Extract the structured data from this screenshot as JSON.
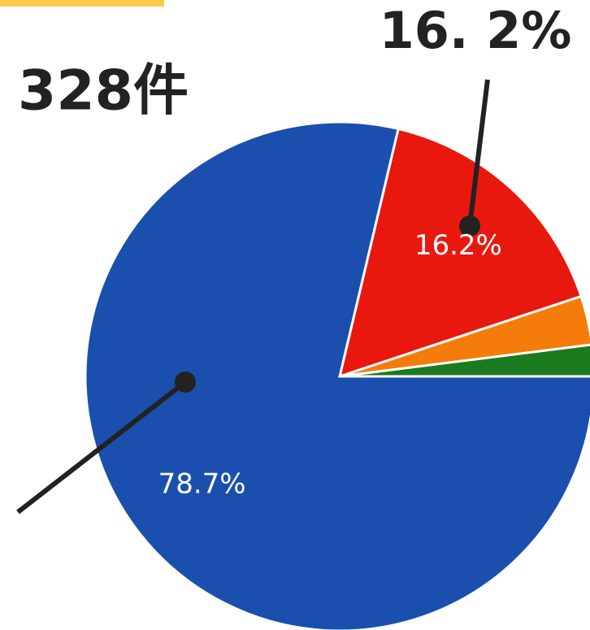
{
  "chart_data": {
    "type": "pie",
    "values": [
      2.0,
      3.1,
      16.2,
      78.7
    ],
    "colors": [
      "#1a7a1e",
      "#f57c0a",
      "#e8180f",
      "#1b4fae"
    ],
    "value_labels": [
      null,
      null,
      "16.2%",
      "78.7%"
    ],
    "annotations": [
      "16. 2%",
      "328件"
    ]
  }
}
